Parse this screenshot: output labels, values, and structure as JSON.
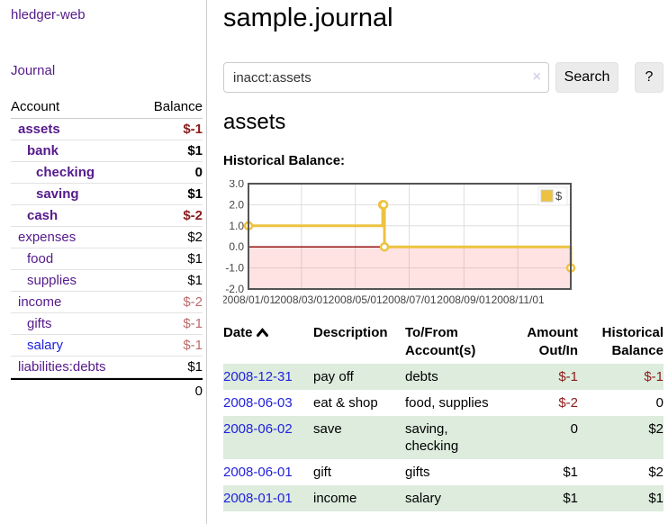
{
  "app": {
    "brand": "hledger-web"
  },
  "nav": {
    "journal": "Journal"
  },
  "sidebar": {
    "headers": {
      "account": "Account",
      "balance": "Balance"
    },
    "accounts": [
      {
        "name": "assets",
        "depth": 0,
        "balance": "$-1",
        "bold": true,
        "neg": "strong"
      },
      {
        "name": "bank",
        "depth": 1,
        "balance": "$1",
        "bold": true,
        "neg": null
      },
      {
        "name": "checking",
        "depth": 2,
        "balance": "0",
        "bold": true,
        "neg": null
      },
      {
        "name": "saving",
        "depth": 2,
        "balance": "$1",
        "bold": true,
        "neg": null
      },
      {
        "name": "cash",
        "depth": 1,
        "balance": "$-2",
        "bold": true,
        "neg": "strong"
      },
      {
        "name": "expenses",
        "depth": 0,
        "balance": "$2",
        "bold": false,
        "neg": null
      },
      {
        "name": "food",
        "depth": 1,
        "balance": "$1",
        "bold": false,
        "neg": null
      },
      {
        "name": "supplies",
        "depth": 1,
        "balance": "$1",
        "bold": false,
        "neg": null
      },
      {
        "name": "income",
        "depth": 0,
        "balance": "$-2",
        "bold": false,
        "neg": "muted"
      },
      {
        "name": "gifts",
        "depth": 1,
        "balance": "$-1",
        "bold": false,
        "neg": "muted"
      },
      {
        "name": "salary",
        "depth": 1,
        "balance": "$-1",
        "bold": false,
        "neg": "muted",
        "blue": true
      },
      {
        "name": "liabilities:debts",
        "depth": 0,
        "balance": "$1",
        "bold": false,
        "neg": null
      }
    ],
    "total": "0"
  },
  "header": {
    "title": "sample.journal"
  },
  "search": {
    "value": "inacct:assets",
    "clear_icon": "×",
    "button_label": "Search",
    "help_label": "?"
  },
  "account_page": {
    "heading": "assets",
    "chart_title": "Historical Balance:"
  },
  "chart_data": {
    "type": "line",
    "step": true,
    "title": "Historical Balance:",
    "series": [
      {
        "name": "$",
        "color": "#edc240",
        "points": [
          [
            "2008-01-01",
            1
          ],
          [
            "2008-06-01",
            2
          ],
          [
            "2008-06-02",
            2
          ],
          [
            "2008-06-03",
            0
          ],
          [
            "2008-12-31",
            -1
          ]
        ]
      }
    ],
    "xrange": [
      "2008-01-01",
      "2008-12-31"
    ],
    "ylim": [
      -2,
      3
    ],
    "yticks": [
      3,
      2,
      1,
      0,
      -1,
      -2
    ],
    "xticks": [
      "2008/01/01",
      "2008/03/01",
      "2008/05/01",
      "2008/07/01",
      "2008/09/01",
      "2008/11/01"
    ],
    "legend_position": "top-right",
    "grid": true,
    "grid_color": "#dddddd",
    "border_color": "#545454",
    "tick_label_color": "#444444",
    "negative_region_color": "rgba(255,102,102,0.18)",
    "zero_line_color": "#8b0000"
  },
  "register": {
    "headers": [
      {
        "lines": [
          "Date"
        ],
        "sorted": "asc",
        "align": "left"
      },
      {
        "lines": [
          "Description"
        ],
        "align": "left"
      },
      {
        "lines": [
          "To/From",
          "Account(s)"
        ],
        "align": "left"
      },
      {
        "lines": [
          "Amount",
          "Out/In"
        ],
        "align": "right"
      },
      {
        "lines": [
          "Historical",
          "Balance"
        ],
        "align": "right"
      }
    ],
    "rows": [
      {
        "date": "2008-12-31",
        "description": "pay off",
        "accounts": "debts",
        "amount": "$-1",
        "amount_neg": true,
        "balance": "$-1",
        "balance_neg": true
      },
      {
        "date": "2008-06-03",
        "description": "eat & shop",
        "accounts": "food, supplies",
        "amount": "$-2",
        "amount_neg": true,
        "balance": "0",
        "balance_neg": false
      },
      {
        "date": "2008-06-02",
        "description": "save",
        "accounts": "saving, checking",
        "amount": "0",
        "amount_neg": false,
        "balance": "$2",
        "balance_neg": false
      },
      {
        "date": "2008-06-01",
        "description": "gift",
        "accounts": "gifts",
        "amount": "$1",
        "amount_neg": false,
        "balance": "$2",
        "balance_neg": false
      },
      {
        "date": "2008-01-01",
        "description": "income",
        "accounts": "salary",
        "amount": "$1",
        "amount_neg": false,
        "balance": "$1",
        "balance_neg": false
      }
    ]
  },
  "colors": {
    "link_purple": "#551a8b",
    "link_blue": "#2222dd",
    "negative_strong": "#8c1b1b",
    "negative_muted": "#bd6a6a",
    "row_stripe_green": "#ddecdd",
    "series_yellow": "#edc240"
  }
}
